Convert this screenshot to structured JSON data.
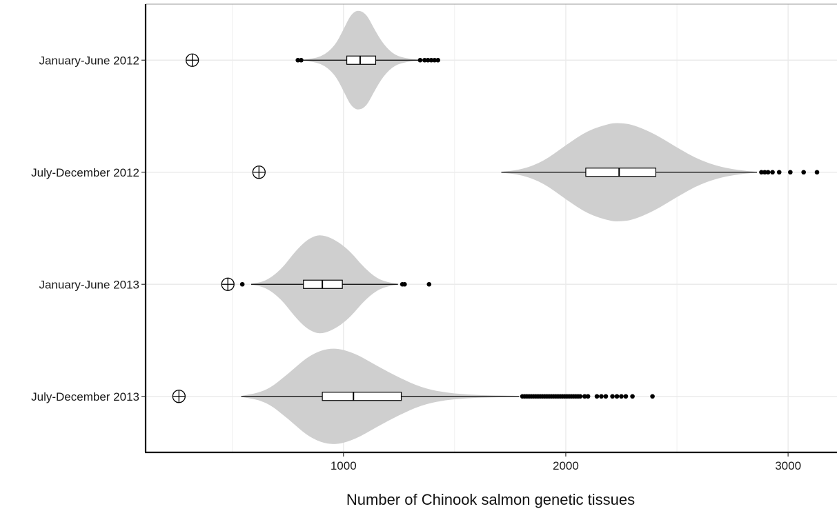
{
  "chart_data": {
    "type": "violin",
    "title": "",
    "xlabel": "Number of Chinook salmon genetic tissues",
    "ylabel": "",
    "xlim": [
      110,
      3220
    ],
    "x_ticks": [
      1000,
      2000,
      3000
    ],
    "grid": true,
    "categories": [
      "January-June 2012",
      "July-December 2012",
      "January-June 2013",
      "July-December 2013"
    ],
    "violins": [
      {
        "category": "January-June 2012",
        "box": {
          "q1": 1015,
          "median": 1075,
          "q3": 1145,
          "whisker_low": 820,
          "whisker_high": 1340
        },
        "outliers": [
          795,
          810,
          1345,
          1365,
          1380,
          1395,
          1410,
          1425
        ],
        "observed": 320,
        "density_x": [
          820,
          900,
          960,
          1000,
          1030,
          1055,
          1075,
          1090,
          1110,
          1140,
          1180,
          1230,
          1290,
          1340
        ],
        "density_w": [
          0.01,
          0.06,
          0.28,
          0.62,
          0.9,
          1.0,
          1.0,
          0.97,
          0.88,
          0.62,
          0.32,
          0.1,
          0.03,
          0.01
        ]
      },
      {
        "category": "July-December 2012",
        "box": {
          "q1": 2090,
          "median": 2240,
          "q3": 2405,
          "whisker_low": 1710,
          "whisker_high": 2860
        },
        "outliers": [
          2880,
          2895,
          2910,
          2930,
          2960,
          3010,
          3070,
          3130
        ],
        "observed": 620,
        "density_x": [
          1710,
          1800,
          1900,
          2000,
          2100,
          2200,
          2240,
          2300,
          2400,
          2500,
          2600,
          2700,
          2800,
          2860
        ],
        "density_w": [
          0.01,
          0.05,
          0.22,
          0.55,
          0.85,
          0.99,
          1.0,
          0.97,
          0.78,
          0.5,
          0.25,
          0.1,
          0.03,
          0.01
        ]
      },
      {
        "category": "January-June 2013",
        "box": {
          "q1": 820,
          "median": 905,
          "q3": 995,
          "whisker_low": 585,
          "whisker_high": 1245
        },
        "outliers": [
          545,
          1265,
          1275,
          1385
        ],
        "observed": 480,
        "density_x": [
          585,
          650,
          720,
          780,
          830,
          870,
          900,
          940,
          990,
          1040,
          1090,
          1150,
          1200,
          1245
        ],
        "density_w": [
          0.01,
          0.06,
          0.3,
          0.65,
          0.88,
          0.98,
          1.0,
          0.95,
          0.82,
          0.62,
          0.35,
          0.12,
          0.04,
          0.01
        ]
      },
      {
        "category": "July-December 2013",
        "box": {
          "q1": 905,
          "median": 1045,
          "q3": 1260,
          "whisker_low": 540,
          "whisker_high": 1790
        },
        "outliers": [
          1805,
          1815,
          1825,
          1835,
          1845,
          1855,
          1865,
          1875,
          1885,
          1895,
          1905,
          1915,
          1925,
          1935,
          1945,
          1955,
          1965,
          1975,
          1985,
          1995,
          2005,
          2015,
          2025,
          2035,
          2045,
          2055,
          2065,
          2085,
          2100,
          2140,
          2160,
          2180,
          2210,
          2230,
          2250,
          2270,
          2300,
          2390
        ],
        "observed": 260,
        "density_x": [
          540,
          650,
          750,
          850,
          950,
          1050,
          1150,
          1250,
          1350,
          1450,
          1550,
          1650,
          1790
        ],
        "density_w": [
          0.01,
          0.1,
          0.45,
          0.85,
          1.0,
          0.88,
          0.62,
          0.38,
          0.18,
          0.08,
          0.04,
          0.02,
          0.01
        ]
      }
    ],
    "colors": {
      "violin_fill": "#cfcfcf",
      "box_fill": "#ffffff",
      "stroke": "#000000",
      "grid": "#ebebeb"
    }
  }
}
